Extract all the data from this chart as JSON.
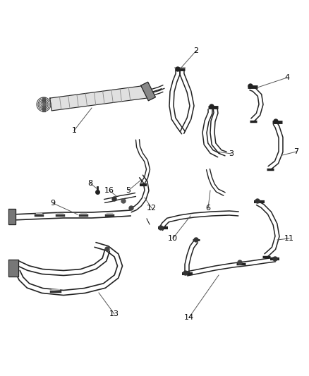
{
  "background_color": "#ffffff",
  "line_color": "#555555",
  "dark_color": "#222222",
  "annotation_color": "#000000",
  "figsize": [
    4.38,
    5.33
  ],
  "dpi": 100,
  "xlim": [
    0,
    438
  ],
  "ylim": [
    0,
    533
  ]
}
